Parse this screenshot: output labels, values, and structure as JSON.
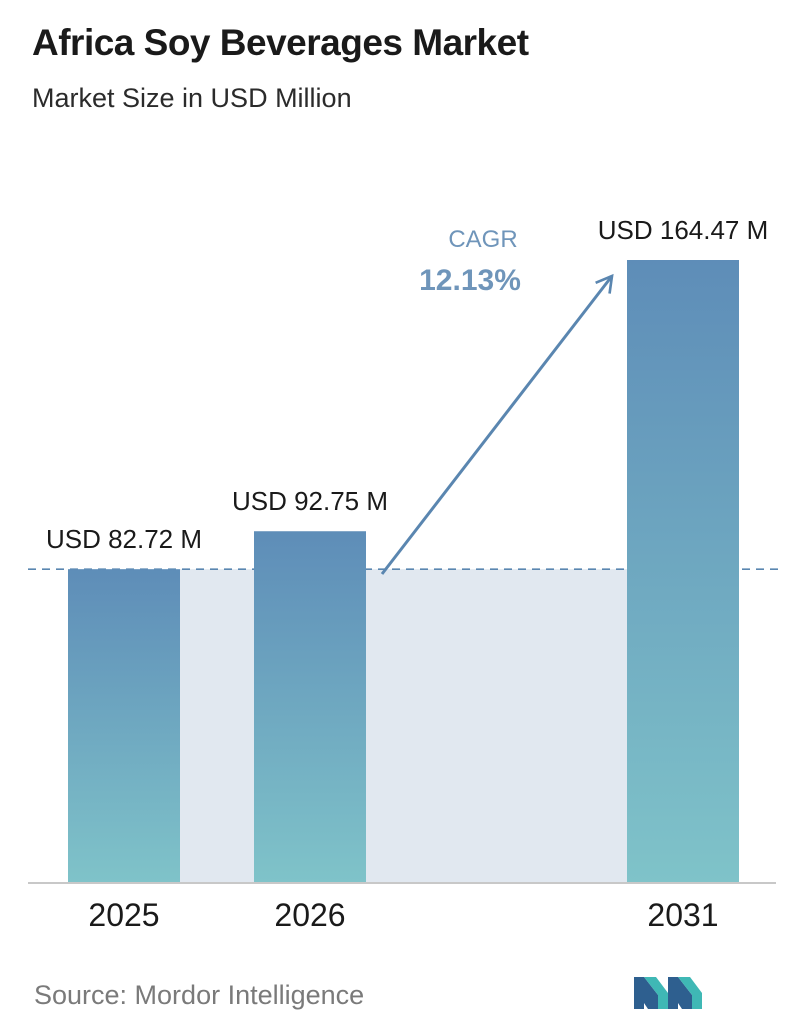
{
  "header": {
    "title": "Africa Soy Beverages Market",
    "subtitle": "Market Size in USD Million"
  },
  "chart_data": {
    "type": "bar",
    "categories": [
      "2025",
      "2026",
      "2031"
    ],
    "values": [
      82.72,
      92.75,
      164.47
    ],
    "value_labels": [
      "USD 82.72 M",
      "USD 92.75 M",
      "USD 164.47 M"
    ],
    "title": "Africa Soy Beverages Market",
    "subtitle": "Market Size in USD Million",
    "xlabel": "",
    "ylabel": "",
    "ylim": [
      0,
      177
    ],
    "grid": false,
    "annotation": {
      "label": "CAGR",
      "value": "12.13%"
    },
    "colors": {
      "bar_top": "#5e8db8",
      "bar_bottom": "#7fc3c9",
      "band": "#e1e8f0",
      "accent": "#5a86b0",
      "dash": "#5a86b0"
    }
  },
  "footer": {
    "source": "Source:  Mordor Intelligence",
    "logo_icon": "mordor-intelligence-logo-icon"
  }
}
